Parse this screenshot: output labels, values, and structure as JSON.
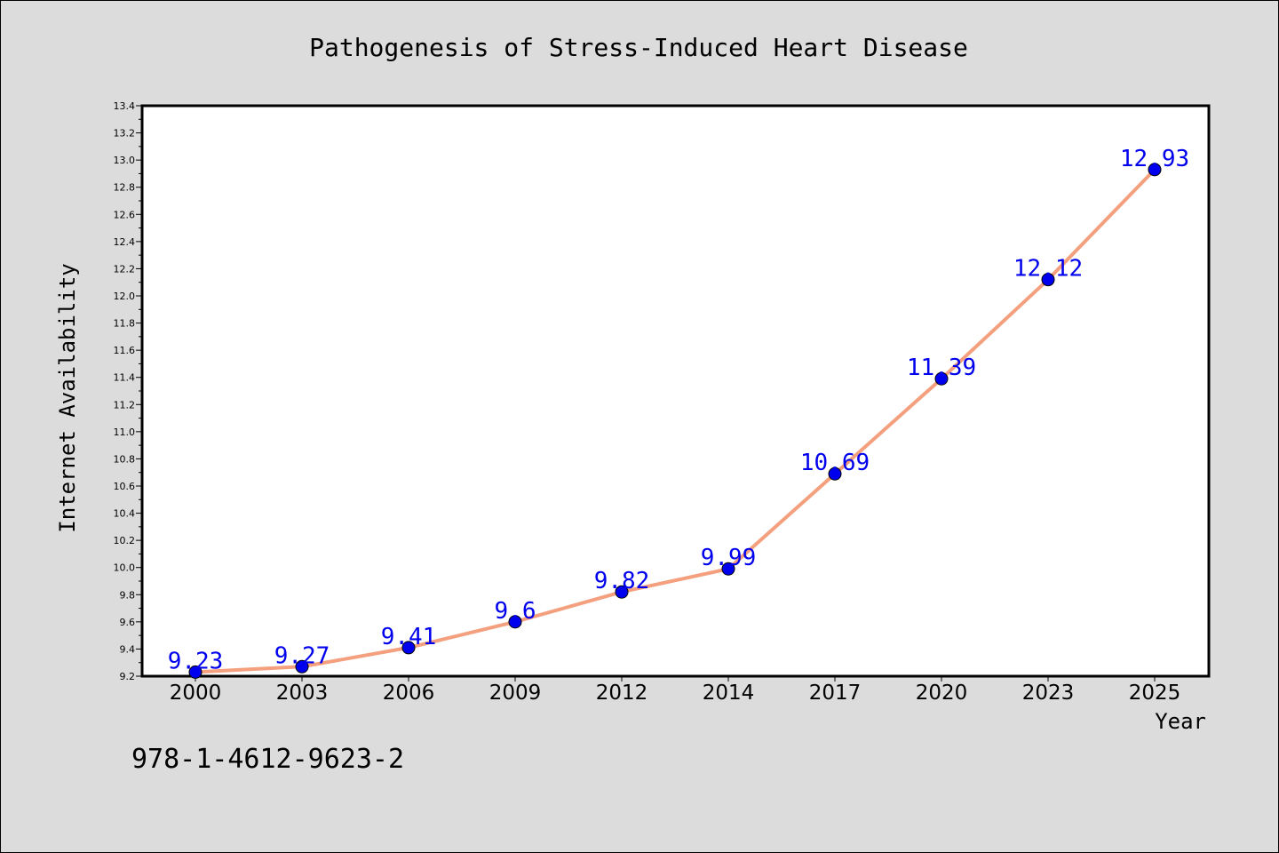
{
  "chart_data": {
    "type": "line",
    "title": "Pathogenesis of Stress-Induced Heart Disease",
    "xlabel": "Year",
    "ylabel": "Internet Availability",
    "categories": [
      "2000",
      "2003",
      "2006",
      "2009",
      "2012",
      "2014",
      "2017",
      "2020",
      "2023",
      "2025"
    ],
    "values": [
      9.23,
      9.27,
      9.41,
      9.6,
      9.82,
      9.99,
      10.69,
      11.39,
      12.12,
      12.93
    ],
    "data_labels": [
      "9.23",
      "9.27",
      "9.41",
      "9.6",
      "9.82",
      "9.99",
      "10.69",
      "11.39",
      "12.12",
      "12.93"
    ],
    "ylim": [
      9.2,
      13.4
    ],
    "yticks": [
      "9.2",
      "9.4",
      "9.6",
      "9.8",
      "10.0",
      "10.2",
      "10.4",
      "10.6",
      "10.8",
      "11.0",
      "11.2",
      "11.4",
      "11.6",
      "11.8",
      "12.0",
      "12.2",
      "12.4",
      "12.6",
      "12.8",
      "13.0",
      "13.2",
      "13.4"
    ],
    "grid": false,
    "line_color": "#f4a07e",
    "marker_color": "#0000ee",
    "label_color": "#0000ee"
  },
  "footer_code": "978-1-4612-9623-2"
}
